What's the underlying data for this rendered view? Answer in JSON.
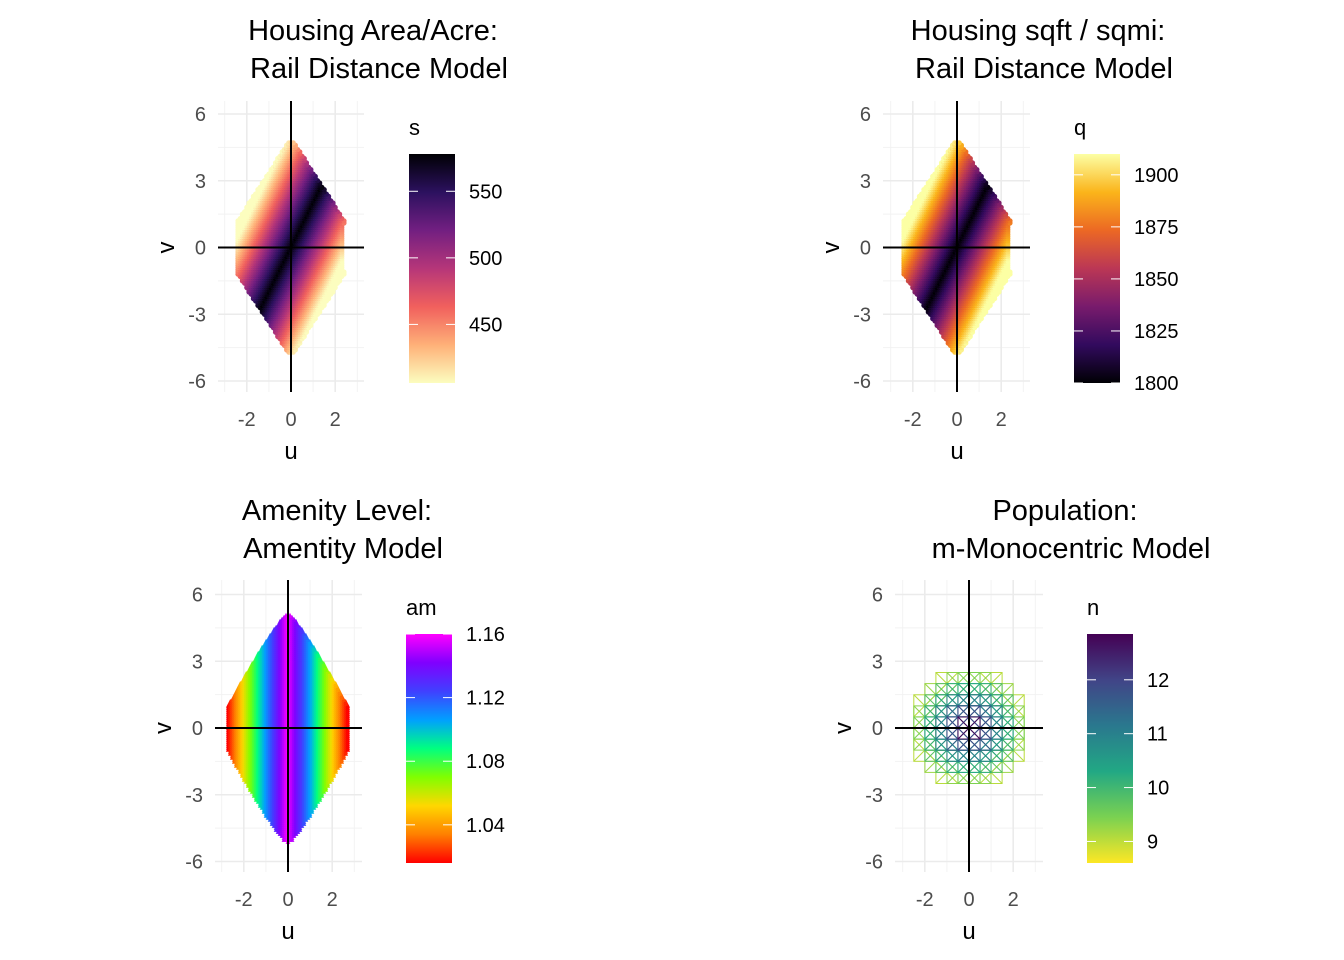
{
  "chart_data": [
    {
      "type": "scatter",
      "title_line1": "Housing Area/Acre:",
      "title_line2": "Rail Distance Model",
      "xlabel": "u",
      "ylabel": "v",
      "xlim": [
        -3.3,
        3.3
      ],
      "ylim": [
        -6.5,
        6.5
      ],
      "xticks": [
        -2,
        0,
        2
      ],
      "yticks": [
        6,
        3,
        0,
        -3,
        -6
      ],
      "grid": true,
      "reference_lines": {
        "x": 0,
        "y": 0
      },
      "marker": "circle",
      "legend": {
        "title": "s",
        "position": "right",
        "range": [
          406,
          578
        ],
        "ticks": [
          550,
          500,
          450
        ],
        "palette": "magma",
        "colors": [
          "#fcfdbf",
          "#feb078",
          "#f1605d",
          "#b63679",
          "#721f81",
          "#2c115f",
          "#000004"
        ]
      },
      "shape": {
        "v_max": 4.7,
        "u_max": 2.4,
        "pattern": "diagonal"
      }
    },
    {
      "type": "scatter",
      "title_line1": "Housing sqft / sqmi:",
      "title_line2": "Rail Distance Model",
      "xlabel": "u",
      "ylabel": "v",
      "xlim": [
        -3.3,
        3.3
      ],
      "ylim": [
        -6.5,
        6.5
      ],
      "xticks": [
        -2,
        0,
        2
      ],
      "yticks": [
        6,
        3,
        0,
        -3,
        -6
      ],
      "grid": true,
      "reference_lines": {
        "x": 0,
        "y": 0
      },
      "marker": "circle",
      "legend": {
        "title": "q",
        "position": "right",
        "range": [
          1800,
          1910
        ],
        "ticks": [
          1900,
          1875,
          1850,
          1825,
          1800
        ],
        "palette": "inferno",
        "colors": [
          "#000004",
          "#320a5e",
          "#781b6c",
          "#bb3755",
          "#ec6824",
          "#fbb41a",
          "#fcffa4"
        ]
      },
      "shape": {
        "v_max": 4.7,
        "u_max": 2.4,
        "pattern": "diagonal-inverted"
      }
    },
    {
      "type": "scatter",
      "title_line1": "Amenity Level:",
      "title_line2": "Amentity Model",
      "xlabel": "u",
      "ylabel": "v",
      "xlim": [
        -3.3,
        3.3
      ],
      "ylim": [
        -6.5,
        6.5
      ],
      "xticks": [
        -2,
        0,
        2
      ],
      "yticks": [
        6,
        3,
        0,
        -3,
        -6
      ],
      "grid": true,
      "reference_lines": {
        "x": 0,
        "y": 0
      },
      "marker": "triangle",
      "legend": {
        "title": "am",
        "position": "right",
        "range": [
          1.016,
          1.16
        ],
        "ticks": [
          "1.16",
          "1.12",
          "1.08",
          "1.04"
        ],
        "tick_values": [
          1.16,
          1.12,
          1.08,
          1.04
        ],
        "palette": "rainbow",
        "colors": [
          "#ff0000",
          "#ff8000",
          "#ffd700",
          "#80ff00",
          "#00ff80",
          "#00a0ff",
          "#4040ff",
          "#8000ff",
          "#ff00ff"
        ]
      },
      "shape": {
        "v_max": 5.1,
        "u_max": 2.7,
        "pattern": "vertical-bands"
      }
    },
    {
      "type": "scatter",
      "title_line1": "Population:",
      "title_line2": "m-Monocentric Model",
      "xlabel": "u",
      "ylabel": "v",
      "xlim": [
        -3.3,
        3.3
      ],
      "ylim": [
        -6.5,
        6.5
      ],
      "xticks": [
        -2,
        0,
        2
      ],
      "yticks": [
        6,
        3,
        0,
        -3,
        -6
      ],
      "grid": true,
      "reference_lines": {
        "x": 0,
        "y": 0
      },
      "marker": "square-cross",
      "legend": {
        "title": "n",
        "position": "right",
        "range": [
          8.6,
          12.85
        ],
        "ticks": [
          12,
          11,
          10,
          9
        ],
        "palette": "viridis",
        "colors": [
          "#fde725",
          "#7ad151",
          "#22a884",
          "#2a788e",
          "#414487",
          "#440154"
        ]
      },
      "shape": {
        "radius": 2.0,
        "step": 0.5,
        "pattern": "radial"
      }
    }
  ]
}
